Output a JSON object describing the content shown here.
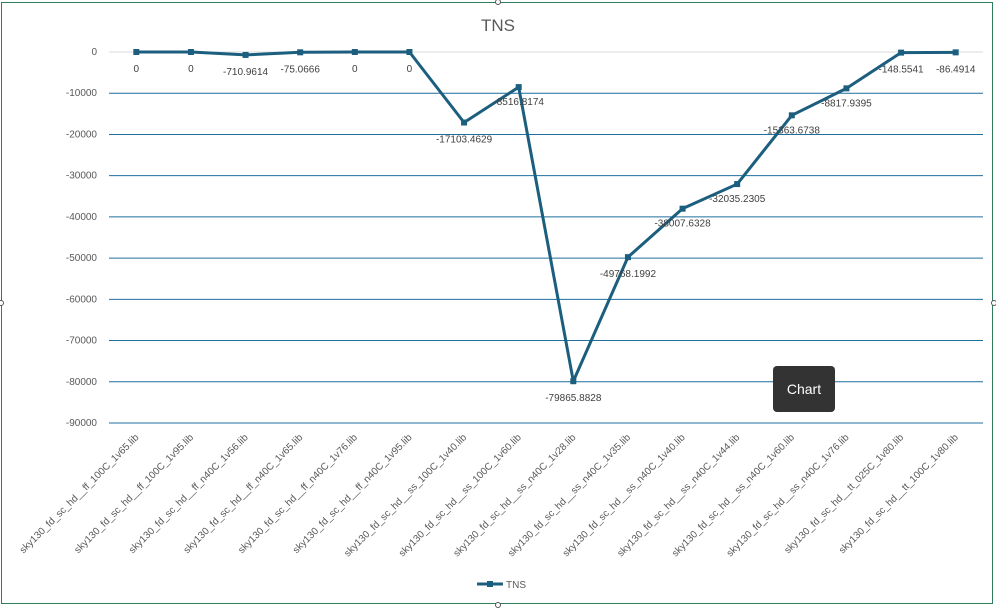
{
  "chart_data": {
    "type": "line",
    "title": "TNS",
    "categories": [
      "sky130_fd_sc_hd__ff_100C_1v65.lib",
      "sky130_fd_sc_hd__ff_100C_1v95.lib",
      "sky130_fd_sc_hd__ff_n40C_1v56.lib",
      "sky130_fd_sc_hd__ff_n40C_1v65.lib",
      "sky130_fd_sc_hd__ff_n40C_1v76.lib",
      "sky130_fd_sc_hd__ff_n40C_1v95.lib",
      "sky130_fd_sc_hd__ss_100C_1v40.lib",
      "sky130_fd_sc_hd__ss_100C_1v60.lib",
      "sky130_fd_sc_hd__ss_n40C_1v28.lib",
      "sky130_fd_sc_hd__ss_n40C_1v35.lib",
      "sky130_fd_sc_hd__ss_n40C_1v40.lib",
      "sky130_fd_sc_hd__ss_n40C_1v44.lib",
      "sky130_fd_sc_hd__ss_n40C_1v60.lib",
      "sky130_fd_sc_hd__ss_n40C_1v76.lib",
      "sky130_fd_sc_hd__tt_025C_1v80.lib",
      "sky130_fd_sc_hd__tt_100C_1v80.lib"
    ],
    "series": [
      {
        "name": "TNS",
        "color": "#1b5e7e",
        "values": [
          0,
          0,
          -710.9614,
          -75.0666,
          0,
          0,
          -17103.4629,
          -8516.8174,
          -79865.8828,
          -49768.1992,
          -38007.6328,
          -32035.2305,
          -15363.6738,
          -8817.9395,
          -148.5541,
          -86.4914
        ],
        "labels": [
          "0",
          "0",
          "-710.9614",
          "-75.0666",
          "0",
          "0",
          "-17103.4629",
          "-8516.8174",
          "-79865.8828",
          "-49768.1992",
          "-38007.6328",
          "-32035.2305",
          "-15363.6738",
          "-8817.9395",
          "-148.5541",
          "-86.4914"
        ]
      }
    ],
    "ylim": [
      -90000,
      0
    ],
    "yticks": [
      0,
      -10000,
      -20000,
      -30000,
      -40000,
      -50000,
      -60000,
      -70000,
      -80000,
      -90000
    ],
    "ytick_labels": [
      "0",
      "-10000",
      "-20000",
      "-30000",
      "-40000",
      "-50000",
      "-60000",
      "-70000",
      "-80000",
      "-90000"
    ],
    "grid": true,
    "gridline_color": "#1f6f9f",
    "legend": {
      "position": "bottom",
      "entries": [
        "TNS"
      ]
    }
  },
  "tooltip": {
    "text": "Chart"
  }
}
